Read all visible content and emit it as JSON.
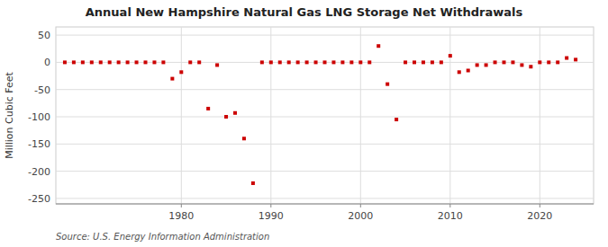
{
  "chart_data": {
    "type": "scatter",
    "title": "Annual New Hampshire Natural Gas LNG Storage Net Withdrawals",
    "y_label": "Million Cubic Feet",
    "annotations": [
      "Source: U.S. Energy Information Administration"
    ],
    "color": "#cc0000",
    "marker": "square",
    "grid": true,
    "xlim": [
      1966,
      2026
    ],
    "xticks": [
      1980,
      1990,
      2000,
      2010,
      2020
    ],
    "ylim": [
      -260,
      65
    ],
    "yticks": [
      50,
      0,
      -50,
      -100,
      -150,
      -200,
      -250
    ],
    "x": [
      1967,
      1968,
      1969,
      1970,
      1971,
      1972,
      1973,
      1974,
      1975,
      1976,
      1977,
      1978,
      1979,
      1980,
      1981,
      1982,
      1983,
      1984,
      1985,
      1986,
      1987,
      1988,
      1989,
      1990,
      1991,
      1992,
      1993,
      1994,
      1995,
      1996,
      1997,
      1998,
      1999,
      2000,
      2001,
      2002,
      2003,
      2004,
      2005,
      2006,
      2007,
      2008,
      2009,
      2010,
      2011,
      2012,
      2013,
      2014,
      2015,
      2016,
      2017,
      2018,
      2019,
      2020,
      2021,
      2022,
      2023,
      2024
    ],
    "values": [
      0,
      0,
      0,
      0,
      0,
      0,
      0,
      0,
      0,
      0,
      0,
      0,
      -30,
      -18,
      0,
      0,
      -85,
      -5,
      -100,
      -93,
      -140,
      -222,
      0,
      0,
      0,
      0,
      0,
      0,
      0,
      0,
      0,
      0,
      0,
      0,
      0,
      30,
      -40,
      -105,
      0,
      0,
      0,
      0,
      0,
      12,
      -18,
      -15,
      -5,
      -5,
      0,
      0,
      0,
      -5,
      -8,
      0,
      0,
      0,
      8,
      5
    ]
  }
}
